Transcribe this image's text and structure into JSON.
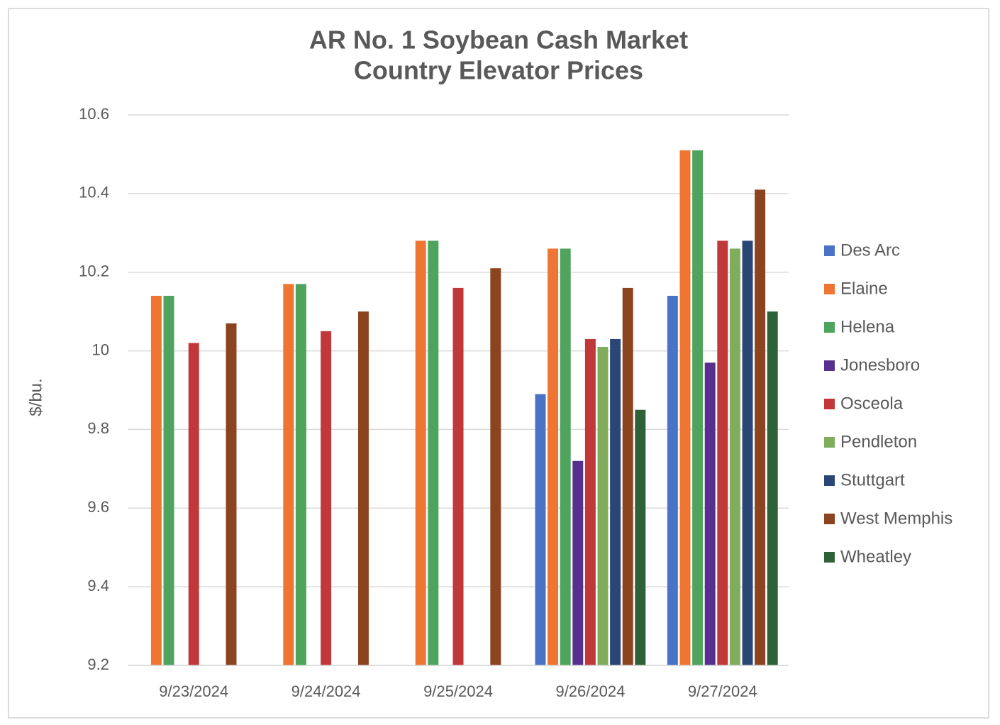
{
  "chart_data": {
    "type": "bar",
    "title": "AR No. 1 Soybean Cash Market",
    "subtitle": "Country Elevator Prices",
    "y_label": "$/bu.",
    "categories": [
      "9/23/2024",
      "9/24/2024",
      "9/25/2024",
      "9/26/2024",
      "9/27/2024"
    ],
    "series": [
      {
        "name": "Des Arc",
        "color": "#4a72c6",
        "values": [
          null,
          null,
          null,
          9.89,
          10.14
        ]
      },
      {
        "name": "Elaine",
        "color": "#ee7532",
        "values": [
          10.14,
          10.17,
          10.28,
          10.26,
          10.51
        ]
      },
      {
        "name": "Helena",
        "color": "#4ea35d",
        "values": [
          10.14,
          10.17,
          10.28,
          10.26,
          10.51
        ]
      },
      {
        "name": "Jonesboro",
        "color": "#57308f",
        "values": [
          null,
          null,
          null,
          9.72,
          9.97
        ]
      },
      {
        "name": "Osceola",
        "color": "#c1383a",
        "values": [
          10.02,
          10.05,
          10.16,
          10.03,
          10.28
        ]
      },
      {
        "name": "Pendleton",
        "color": "#80ad5c",
        "values": [
          null,
          null,
          null,
          10.01,
          10.26
        ]
      },
      {
        "name": "Stuttgart",
        "color": "#2a4676",
        "values": [
          null,
          null,
          null,
          10.03,
          10.28
        ]
      },
      {
        "name": "West Memphis",
        "color": "#8c4420",
        "values": [
          10.07,
          10.1,
          10.21,
          10.16,
          10.41
        ]
      },
      {
        "name": "Wheatley",
        "color": "#2d6138",
        "values": [
          null,
          null,
          null,
          9.85,
          10.1
        ]
      }
    ],
    "ylim": [
      9.2,
      10.6
    ],
    "yticks": [
      9.2,
      9.4,
      9.6,
      9.8,
      10,
      10.2,
      10.4,
      10.6
    ],
    "grid": true,
    "legend": "right"
  }
}
